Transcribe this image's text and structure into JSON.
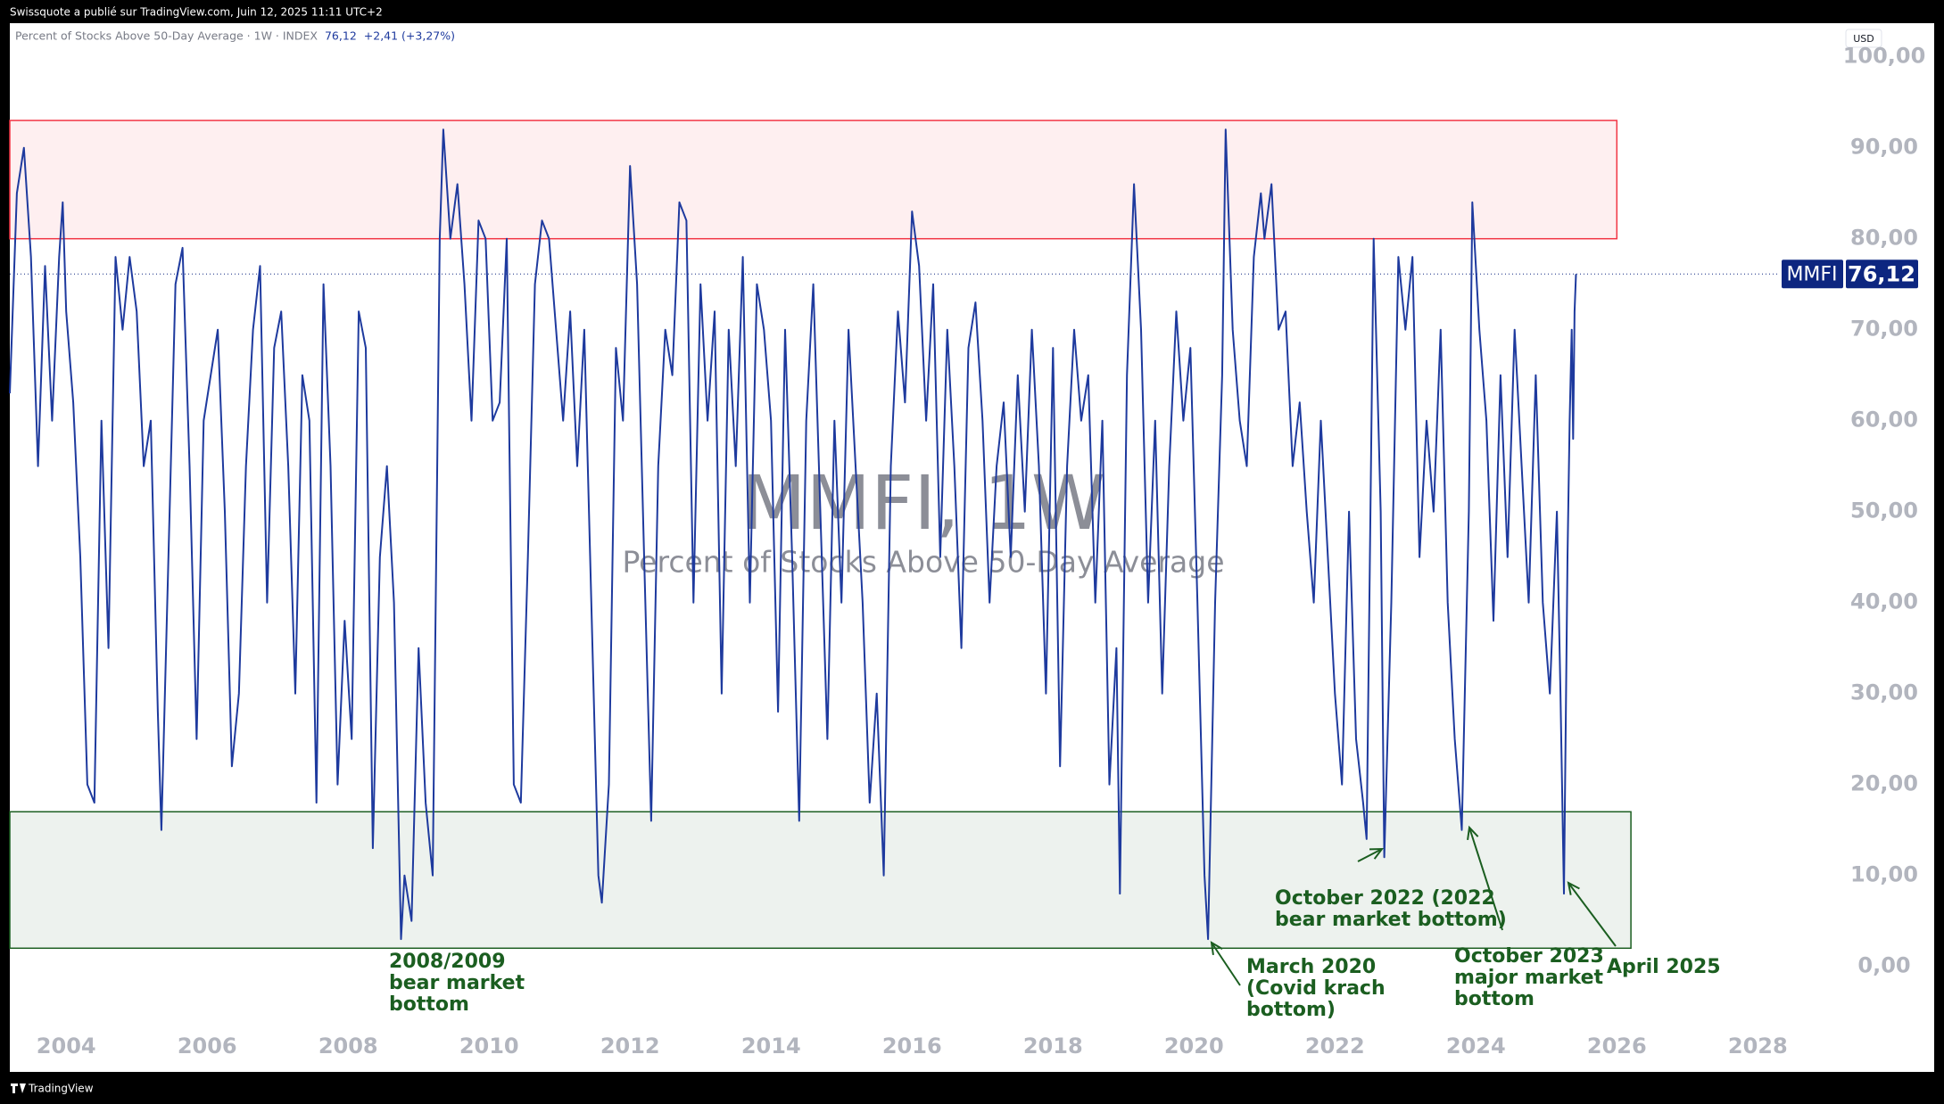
{
  "header": {
    "text": "Swissquote a publié sur TradingView.com, Juin 12, 2025 11:11 UTC+2"
  },
  "footer": {
    "text": "TradingView"
  },
  "currency": "USD",
  "chart_data": {
    "type": "line",
    "title": "MMFI, 1W",
    "subtitle": "Percent of Stocks Above 50-Day Average",
    "legend": {
      "name": "Percent of Stocks Above 50-Day Average · 1W · INDEX",
      "change": "+2,41 (+3,27%)"
    },
    "xlim": [
      2003.2,
      2028.3
    ],
    "ylim": [
      -6.5,
      103.5
    ],
    "xticks": [
      2004,
      2006,
      2008,
      2010,
      2012,
      2014,
      2016,
      2018,
      2020,
      2022,
      2024,
      2026,
      2028
    ],
    "yticks": [
      {
        "value": 0,
        "label": "0,00"
      },
      {
        "value": 10,
        "label": "10,00"
      },
      {
        "value": 20,
        "label": "20,00"
      },
      {
        "value": 30,
        "label": "30,00"
      },
      {
        "value": 40,
        "label": "40,00"
      },
      {
        "value": 50,
        "label": "50,00"
      },
      {
        "value": 60,
        "label": "60,00"
      },
      {
        "value": 70,
        "label": "70,00"
      },
      {
        "value": 80,
        "label": "80,00"
      },
      {
        "value": 90,
        "label": "90,00"
      },
      {
        "value": 100,
        "label": "100,00"
      }
    ],
    "last_value": {
      "name": "MMFI",
      "value": 76.12,
      "label": "76,12",
      "color": "#0d2680"
    },
    "zones": [
      {
        "xlim": [
          2003.2,
          2026.0
        ],
        "ylim": [
          80,
          93
        ],
        "color": "#f23645"
      },
      {
        "xlim": [
          2003.2,
          2026.2
        ],
        "ylim": [
          2,
          17
        ],
        "color": "#1b5e20"
      }
    ],
    "annotations": [
      {
        "lines": [
          "2008/2009",
          "bear market",
          "bottom"
        ]
      },
      {
        "lines": [
          "March 2020",
          "(Covid krach",
          "bottom)"
        ]
      },
      {
        "lines": [
          "October 2022 (2022",
          "bear market bottom)"
        ]
      },
      {
        "lines": [
          "October 2023",
          "major market",
          "bottom"
        ]
      },
      {
        "lines": [
          "April 2025"
        ]
      }
    ],
    "series": [
      {
        "name": "MMFI",
        "color": "#1e3a9e",
        "x": [
          2003.2,
          2003.3,
          2003.4,
          2003.5,
          2003.6,
          2003.7,
          2003.8,
          2003.9,
          2003.95,
          2004.0,
          2004.1,
          2004.2,
          2004.3,
          2004.4,
          2004.5,
          2004.6,
          2004.7,
          2004.8,
          2004.9,
          2005.0,
          2005.1,
          2005.2,
          2005.3,
          2005.35,
          2005.45,
          2005.55,
          2005.65,
          2005.75,
          2005.85,
          2005.95,
          2006.05,
          2006.15,
          2006.25,
          2006.35,
          2006.45,
          2006.55,
          2006.65,
          2006.75,
          2006.85,
          2006.95,
          2007.05,
          2007.15,
          2007.25,
          2007.35,
          2007.45,
          2007.55,
          2007.65,
          2007.75,
          2007.85,
          2007.95,
          2008.05,
          2008.15,
          2008.25,
          2008.35,
          2008.45,
          2008.55,
          2008.65,
          2008.75,
          2008.8,
          2008.9,
          2009.0,
          2009.1,
          2009.2,
          2009.3,
          2009.35,
          2009.45,
          2009.55,
          2009.65,
          2009.75,
          2009.85,
          2009.95,
          2010.05,
          2010.15,
          2010.25,
          2010.35,
          2010.45,
          2010.55,
          2010.65,
          2010.75,
          2010.85,
          2010.95,
          2011.05,
          2011.15,
          2011.25,
          2011.35,
          2011.45,
          2011.55,
          2011.6,
          2011.7,
          2011.8,
          2011.9,
          2012.0,
          2012.1,
          2012.2,
          2012.3,
          2012.4,
          2012.5,
          2012.6,
          2012.7,
          2012.8,
          2012.9,
          2013.0,
          2013.1,
          2013.2,
          2013.3,
          2013.4,
          2013.5,
          2013.6,
          2013.7,
          2013.8,
          2013.9,
          2014.0,
          2014.1,
          2014.2,
          2014.3,
          2014.4,
          2014.5,
          2014.6,
          2014.7,
          2014.8,
          2014.9,
          2015.0,
          2015.1,
          2015.2,
          2015.3,
          2015.4,
          2015.5,
          2015.6,
          2015.7,
          2015.8,
          2015.9,
          2016.0,
          2016.1,
          2016.2,
          2016.3,
          2016.4,
          2016.5,
          2016.6,
          2016.7,
          2016.8,
          2016.9,
          2017.0,
          2017.1,
          2017.2,
          2017.3,
          2017.4,
          2017.5,
          2017.6,
          2017.7,
          2017.8,
          2017.9,
          2018.0,
          2018.1,
          2018.2,
          2018.3,
          2018.4,
          2018.5,
          2018.6,
          2018.7,
          2018.8,
          2018.9,
          2018.95,
          2019.05,
          2019.15,
          2019.25,
          2019.35,
          2019.45,
          2019.55,
          2019.65,
          2019.75,
          2019.85,
          2019.95,
          2020.05,
          2020.15,
          2020.2,
          2020.3,
          2020.4,
          2020.45,
          2020.55,
          2020.65,
          2020.75,
          2020.85,
          2020.95,
          2021.0,
          2021.1,
          2021.2,
          2021.3,
          2021.4,
          2021.5,
          2021.6,
          2021.7,
          2021.8,
          2021.9,
          2022.0,
          2022.1,
          2022.2,
          2022.3,
          2022.4,
          2022.45,
          2022.55,
          2022.65,
          2022.7,
          2022.8,
          2022.9,
          2023.0,
          2023.1,
          2023.2,
          2023.3,
          2023.4,
          2023.5,
          2023.6,
          2023.7,
          2023.8,
          2023.9,
          2023.95,
          2024.05,
          2024.15,
          2024.25,
          2024.35,
          2024.45,
          2024.55,
          2024.65,
          2024.75,
          2024.85,
          2024.95,
          2025.05,
          2025.15,
          2025.2,
          2025.25,
          2025.3,
          2025.33,
          2025.36,
          2025.38,
          2025.4,
          2025.42
        ],
        "values": [
          63,
          85,
          90,
          78,
          55,
          77,
          60,
          78,
          84,
          72,
          62,
          45,
          20,
          18,
          60,
          35,
          78,
          70,
          78,
          72,
          55,
          60,
          28,
          15,
          45,
          75,
          79,
          55,
          25,
          60,
          65,
          70,
          50,
          22,
          30,
          55,
          70,
          77,
          40,
          68,
          72,
          55,
          30,
          65,
          60,
          18,
          75,
          55,
          20,
          38,
          25,
          72,
          68,
          13,
          45,
          55,
          40,
          3,
          10,
          5,
          35,
          18,
          10,
          80,
          92,
          80,
          86,
          75,
          60,
          82,
          80,
          60,
          62,
          80,
          20,
          18,
          45,
          75,
          82,
          80,
          70,
          60,
          72,
          55,
          70,
          40,
          10,
          7,
          20,
          68,
          60,
          88,
          75,
          45,
          16,
          55,
          70,
          65,
          84,
          82,
          40,
          75,
          60,
          72,
          30,
          70,
          55,
          78,
          40,
          75,
          70,
          60,
          28,
          70,
          45,
          16,
          60,
          75,
          50,
          25,
          60,
          40,
          70,
          55,
          40,
          18,
          30,
          10,
          55,
          72,
          62,
          83,
          77,
          60,
          75,
          45,
          70,
          55,
          35,
          68,
          73,
          60,
          40,
          55,
          62,
          45,
          65,
          50,
          70,
          55,
          30,
          68,
          22,
          55,
          70,
          60,
          65,
          40,
          60,
          20,
          35,
          8,
          65,
          86,
          70,
          40,
          60,
          30,
          55,
          72,
          60,
          68,
          40,
          10,
          3,
          40,
          65,
          92,
          70,
          60,
          55,
          78,
          85,
          80,
          86,
          70,
          72,
          55,
          62,
          50,
          40,
          60,
          45,
          30,
          20,
          50,
          25,
          18,
          14,
          80,
          50,
          12,
          40,
          78,
          70,
          78,
          45,
          60,
          50,
          70,
          40,
          25,
          15,
          50,
          84,
          70,
          60,
          38,
          65,
          45,
          70,
          55,
          40,
          65,
          40,
          30,
          50,
          30,
          8,
          45,
          60,
          70,
          58,
          72,
          76.12
        ]
      }
    ]
  }
}
